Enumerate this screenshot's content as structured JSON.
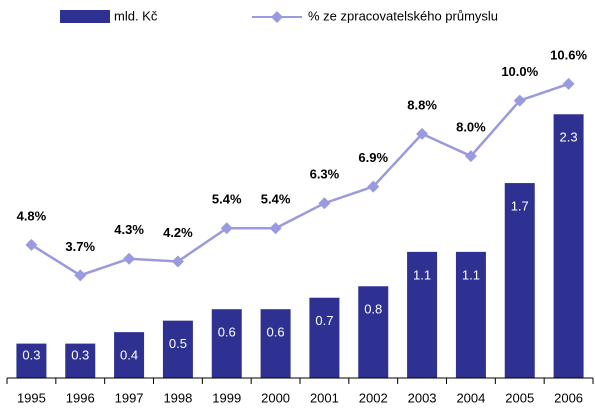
{
  "chart_data": {
    "type": "bar-line",
    "categories": [
      "1995",
      "1996",
      "1997",
      "1998",
      "1999",
      "2000",
      "2001",
      "2002",
      "2003",
      "2004",
      "2005",
      "2006"
    ],
    "series": [
      {
        "name": "mld. Kč",
        "type": "bar",
        "color": "#2e3192",
        "values": [
          0.3,
          0.3,
          0.4,
          0.5,
          0.6,
          0.6,
          0.7,
          0.8,
          1.1,
          1.1,
          1.7,
          2.3
        ]
      },
      {
        "name": "% ze zpracovatelského průmyslu",
        "type": "line",
        "axis": "y2",
        "color": "#9a9ade",
        "values": [
          4.8,
          3.7,
          4.3,
          4.2,
          5.4,
          5.4,
          6.3,
          6.9,
          8.8,
          8.0,
          10.0,
          10.6
        ],
        "value_labels": [
          "4.8%",
          "3.7%",
          "4.3%",
          "4.2%",
          "5.4%",
          "5.4%",
          "6.3%",
          "6.9%",
          "8.8%",
          "8.0%",
          "10.0%",
          "10.6%"
        ]
      }
    ],
    "ylim": [
      0,
      3
    ],
    "y2lim": [
      0,
      12.4
    ],
    "legend": "top"
  }
}
